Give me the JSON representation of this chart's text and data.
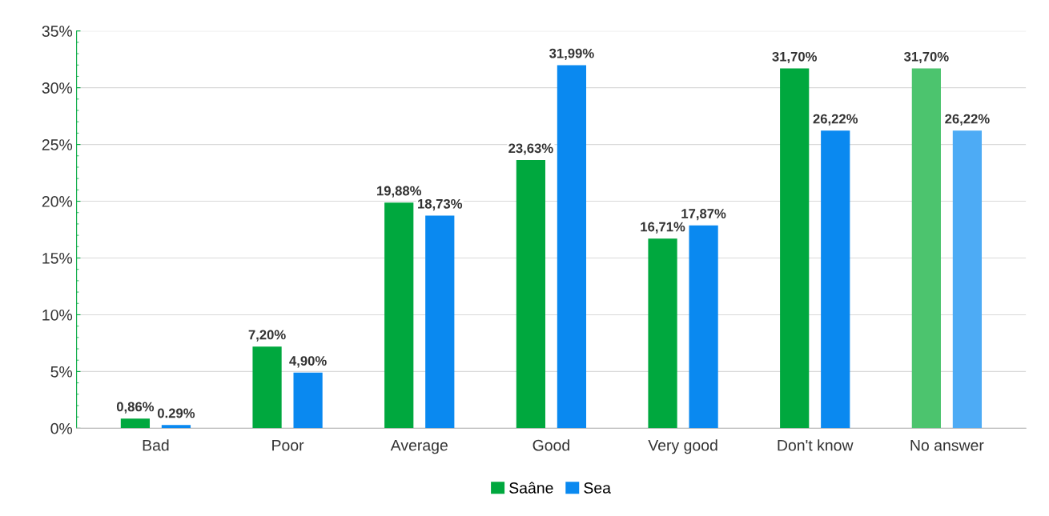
{
  "chart_data": {
    "type": "bar",
    "categories": [
      "Bad",
      "Poor",
      "Average",
      "Good",
      "Very good",
      "Don't know",
      "No answer"
    ],
    "series": [
      {
        "name": "Saâne",
        "color": "#00a83e",
        "colors": [
          "#00a83e",
          "#00a83e",
          "#00a83e",
          "#00a83e",
          "#00a83e",
          "#00a83e",
          "#4cc46e"
        ],
        "values": [
          0.86,
          7.2,
          19.88,
          23.63,
          16.71,
          31.7,
          31.7
        ],
        "value_labels": [
          "0,86%",
          "7,20%",
          "19,88%",
          "23,63%",
          "16,71%",
          "31,70%",
          "31,70%"
        ]
      },
      {
        "name": "Sea",
        "color": "#0a89f0",
        "colors": [
          "#0a89f0",
          "#0a89f0",
          "#0a89f0",
          "#0a89f0",
          "#0a89f0",
          "#0a89f0",
          "#4dabf5"
        ],
        "values": [
          0.29,
          4.9,
          18.73,
          31.99,
          17.87,
          26.22,
          26.22
        ],
        "value_labels": [
          "0.29%",
          "4,90%",
          "18,73%",
          "31,99%",
          "17,87%",
          "26,22%",
          "26,22%"
        ]
      }
    ],
    "ylim": [
      0,
      35
    ],
    "yticks": [
      {
        "value": 0,
        "label": "0%"
      },
      {
        "value": 5,
        "label": "5%"
      },
      {
        "value": 10,
        "label": "10%"
      },
      {
        "value": 15,
        "label": "15%"
      },
      {
        "value": 20,
        "label": "20%"
      },
      {
        "value": 25,
        "label": "25%"
      },
      {
        "value": 30,
        "label": "30%"
      },
      {
        "value": 35,
        "label": "35%"
      }
    ],
    "grid": "y",
    "legend": "bottom"
  }
}
